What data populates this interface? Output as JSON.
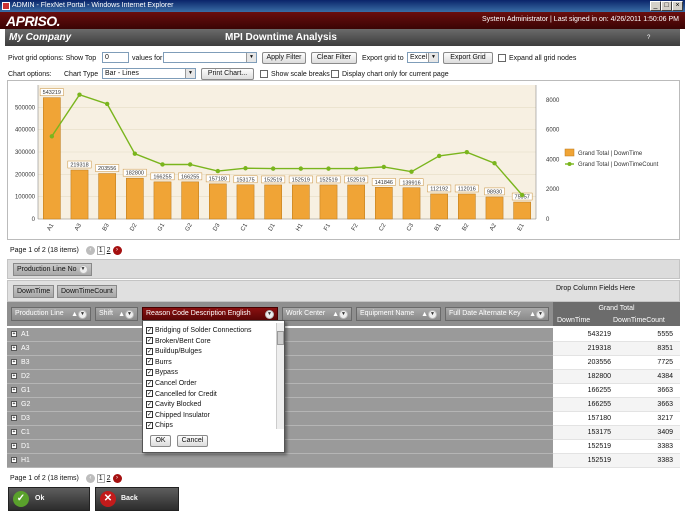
{
  "window": {
    "title": "ADMIN - FlexNet Portal - Windows Internet Explorer",
    "min": "_",
    "max": "□",
    "close": "×"
  },
  "header": {
    "logo": "APRISO.",
    "user_info": "System Administrator | Last signed in on: 4/26/2011 1:50:06 PM"
  },
  "page": {
    "company": "My Company",
    "title": "MPI Downtime Analysis",
    "help": "?"
  },
  "pivot_options": {
    "label": "Pivot grid options: Show Top",
    "top_value": "0",
    "values_for_label": "values for",
    "values_for_value": "",
    "apply_filter": "Apply Filter",
    "clear_filter": "Clear Filter",
    "export_label": "Export grid to",
    "export_value": "Excel",
    "export_button": "Export Grid",
    "expand_label": "Expand all grid nodes"
  },
  "chart_options": {
    "label": "Chart options:",
    "chart_type_label": "Chart Type",
    "chart_type_value": "Bar - Lines",
    "print_button": "Print Chart...",
    "scale_breaks_label": "Show scale breaks",
    "display_only_label": "Display chart only for current page"
  },
  "chart_data": {
    "type": "bar",
    "categories": [
      "A1",
      "A3",
      "B3",
      "D2",
      "G1",
      "G2",
      "D3",
      "C1",
      "D1",
      "H1",
      "F1",
      "F2",
      "C2",
      "C3",
      "B1",
      "B2",
      "A2",
      "E1"
    ],
    "series": [
      {
        "name": "Grand Total | DownTime",
        "type": "bar",
        "axis": "left",
        "values": [
          543219,
          219318,
          203556,
          182800,
          166255,
          166255,
          157180,
          153175,
          152519,
          152519,
          152519,
          152519,
          141846,
          139916,
          112192,
          112016,
          98930,
          75957
        ]
      },
      {
        "name": "Grand Total | DownTimeCount",
        "type": "line",
        "axis": "right",
        "values": [
          5555,
          8351,
          7725,
          4384,
          3663,
          3663,
          3217,
          3409,
          3383,
          3383,
          3383,
          3383,
          3499,
          3175,
          4238,
          4487,
          3748,
          1606
        ]
      }
    ],
    "y_left": {
      "ylim": [
        0,
        600000
      ],
      "ticks": [
        "0",
        "100000",
        "200000",
        "300000",
        "400000",
        "500000"
      ]
    },
    "y_right": {
      "ylim": [
        0,
        9000
      ],
      "ticks": [
        "0",
        "2000",
        "4000",
        "6000",
        "8000"
      ]
    },
    "data_labels": [
      "543219",
      "219318",
      "203556",
      "182800",
      "166255",
      "166255",
      "157180",
      "153175",
      "152519",
      "152519",
      "152519",
      "152519",
      "141846",
      "139916",
      "112192",
      "112016",
      "98930",
      "75957"
    ],
    "legend_placement": "right",
    "colors": {
      "bar": "#f0a436",
      "bar_stroke": "#b9781b",
      "line": "#7ab51d"
    }
  },
  "pager": {
    "text": "Page 1 of 2 (18 items)",
    "pages": [
      "1",
      "2"
    ],
    "prev": "‹",
    "next": "›"
  },
  "filter_fields": {
    "items": [
      "Production Line No"
    ]
  },
  "data_fields": {
    "items": [
      "DownTime",
      "DownTimeCount"
    ],
    "drop_hint": "Drop Column Fields Here"
  },
  "row_fields": {
    "items": [
      "Production Line",
      "Shift",
      "Reason Code Description English",
      "Work Center",
      "Equipment Name",
      "Full Date Alternate Key"
    ]
  },
  "grand_total": {
    "title": "Grand Total",
    "col1": "DownTime",
    "col2": "DownTimeCount"
  },
  "rows": [
    {
      "label": "A1",
      "downtime": "543219",
      "count": "5555"
    },
    {
      "label": "A3",
      "downtime": "219318",
      "count": "8351"
    },
    {
      "label": "B3",
      "downtime": "203556",
      "count": "7725"
    },
    {
      "label": "D2",
      "downtime": "182800",
      "count": "4384"
    },
    {
      "label": "G1",
      "downtime": "166255",
      "count": "3663"
    },
    {
      "label": "G2",
      "downtime": "166255",
      "count": "3663"
    },
    {
      "label": "D3",
      "downtime": "157180",
      "count": "3217"
    },
    {
      "label": "C1",
      "downtime": "153175",
      "count": "3409"
    },
    {
      "label": "D1",
      "downtime": "152519",
      "count": "3383"
    },
    {
      "label": "H1",
      "downtime": "152519",
      "count": "3383"
    }
  ],
  "filter_popup": {
    "items": [
      "Bridging of Solder Connections",
      "Broken/Bent Core",
      "Buildup/Bulges",
      "Burrs",
      "Bypass",
      "Cancel Order",
      "Cancelled for Credit",
      "Cavity Blocked",
      "Chipped Insulator",
      "Chips"
    ],
    "ok": "OK",
    "cancel": "Cancel"
  },
  "footer": {
    "ok": "Ok",
    "back": "Back"
  }
}
